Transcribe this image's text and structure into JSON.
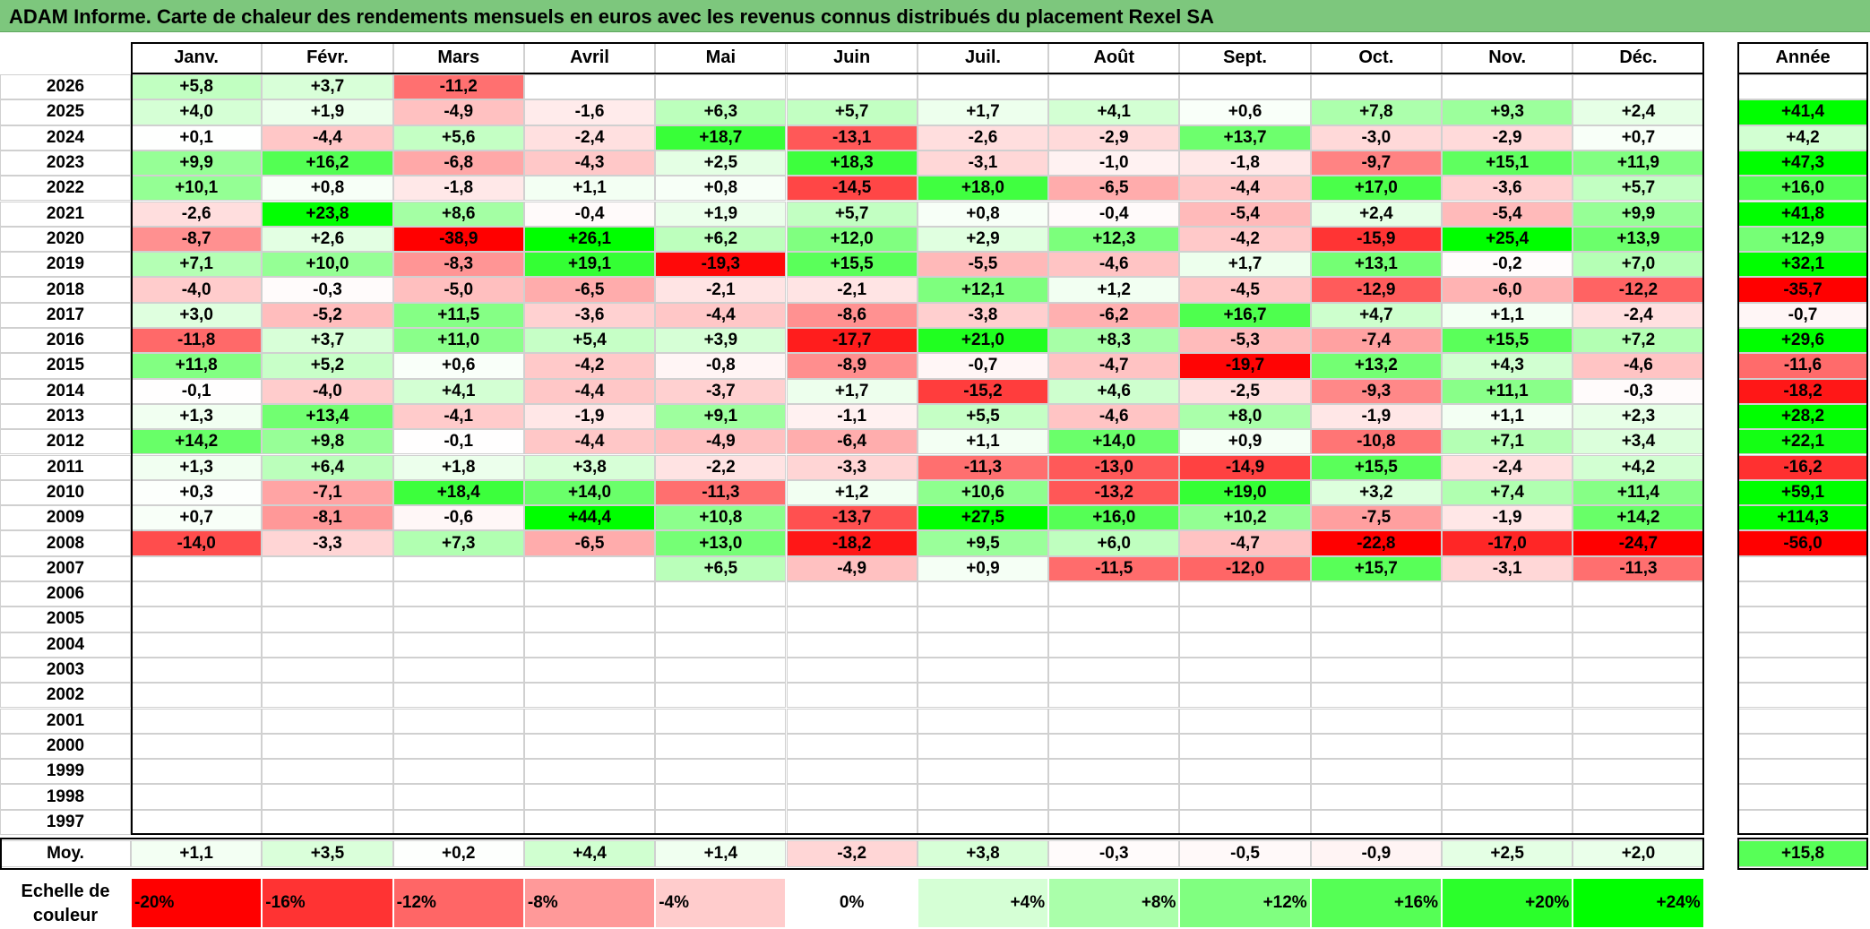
{
  "title": "ADAM Informe. Carte de chaleur des rendements mensuels en euros avec les revenus connus distribués du placement Rexel SA",
  "chart_data": {
    "type": "heatmap",
    "title": "ADAM Informe. Carte de chaleur des rendements mensuels en euros avec les revenus connus distribués du placement Rexel SA",
    "columns": [
      "Janv.",
      "Févr.",
      "Mars",
      "Avril",
      "Mai",
      "Juin",
      "Juil.",
      "Août",
      "Sept.",
      "Oct.",
      "Nov.",
      "Déc."
    ],
    "year_header": "Année",
    "rows": [
      {
        "year": "2026",
        "values": [
          "+5,8",
          "+3,7",
          "-11,2",
          "",
          "",
          "",
          "",
          "",
          "",
          "",
          "",
          ""
        ],
        "annual": ""
      },
      {
        "year": "2025",
        "values": [
          "+4,0",
          "+1,9",
          "-4,9",
          "-1,6",
          "+6,3",
          "+5,7",
          "+1,7",
          "+4,1",
          "+0,6",
          "+7,8",
          "+9,3",
          "+2,4"
        ],
        "annual": "+41,4"
      },
      {
        "year": "2024",
        "values": [
          "+0,1",
          "-4,4",
          "+5,6",
          "-2,4",
          "+18,7",
          "-13,1",
          "-2,6",
          "-2,9",
          "+13,7",
          "-3,0",
          "-2,9",
          "+0,7"
        ],
        "annual": "+4,2"
      },
      {
        "year": "2023",
        "values": [
          "+9,9",
          "+16,2",
          "-6,8",
          "-4,3",
          "+2,5",
          "+18,3",
          "-3,1",
          "-1,0",
          "-1,8",
          "-9,7",
          "+15,1",
          "+11,9"
        ],
        "annual": "+47,3"
      },
      {
        "year": "2022",
        "values": [
          "+10,1",
          "+0,8",
          "-1,8",
          "+1,1",
          "+0,8",
          "-14,5",
          "+18,0",
          "-6,5",
          "-4,4",
          "+17,0",
          "-3,6",
          "+5,7"
        ],
        "annual": "+16,0"
      },
      {
        "year": "2021",
        "values": [
          "-2,6",
          "+23,8",
          "+8,6",
          "-0,4",
          "+1,9",
          "+5,7",
          "+0,8",
          "-0,4",
          "-5,4",
          "+2,4",
          "-5,4",
          "+9,9"
        ],
        "annual": "+41,8"
      },
      {
        "year": "2020",
        "values": [
          "-8,7",
          "+2,6",
          "-38,9",
          "+26,1",
          "+6,2",
          "+12,0",
          "+2,9",
          "+12,3",
          "-4,2",
          "-15,9",
          "+25,4",
          "+13,9"
        ],
        "annual": "+12,9"
      },
      {
        "year": "2019",
        "values": [
          "+7,1",
          "+10,0",
          "-8,3",
          "+19,1",
          "-19,3",
          "+15,5",
          "-5,5",
          "-4,6",
          "+1,7",
          "+13,1",
          "-0,2",
          "+7,0"
        ],
        "annual": "+32,1"
      },
      {
        "year": "2018",
        "values": [
          "-4,0",
          "-0,3",
          "-5,0",
          "-6,5",
          "-2,1",
          "-2,1",
          "+12,1",
          "+1,2",
          "-4,5",
          "-12,9",
          "-6,0",
          "-12,2"
        ],
        "annual": "-35,7"
      },
      {
        "year": "2017",
        "values": [
          "+3,0",
          "-5,2",
          "+11,5",
          "-3,6",
          "-4,4",
          "-8,6",
          "-3,8",
          "-6,2",
          "+16,7",
          "+4,7",
          "+1,1",
          "-2,4"
        ],
        "annual": "-0,7"
      },
      {
        "year": "2016",
        "values": [
          "-11,8",
          "+3,7",
          "+11,0",
          "+5,4",
          "+3,9",
          "-17,7",
          "+21,0",
          "+8,3",
          "-5,3",
          "-7,4",
          "+15,5",
          "+7,2"
        ],
        "annual": "+29,6"
      },
      {
        "year": "2015",
        "values": [
          "+11,8",
          "+5,2",
          "+0,6",
          "-4,2",
          "-0,8",
          "-8,9",
          "-0,7",
          "-4,7",
          "-19,7",
          "+13,2",
          "+4,3",
          "-4,6"
        ],
        "annual": "-11,6"
      },
      {
        "year": "2014",
        "values": [
          "-0,1",
          "-4,0",
          "+4,1",
          "-4,4",
          "-3,7",
          "+1,7",
          "-15,2",
          "+4,6",
          "-2,5",
          "-9,3",
          "+11,1",
          "-0,3"
        ],
        "annual": "-18,2"
      },
      {
        "year": "2013",
        "values": [
          "+1,3",
          "+13,4",
          "-4,1",
          "-1,9",
          "+9,1",
          "-1,1",
          "+5,5",
          "-4,6",
          "+8,0",
          "-1,9",
          "+1,1",
          "+2,3"
        ],
        "annual": "+28,2"
      },
      {
        "year": "2012",
        "values": [
          "+14,2",
          "+9,8",
          "-0,1",
          "-4,4",
          "-4,9",
          "-6,4",
          "+1,1",
          "+14,0",
          "+0,9",
          "-10,8",
          "+7,1",
          "+3,4"
        ],
        "annual": "+22,1"
      },
      {
        "year": "2011",
        "values": [
          "+1,3",
          "+6,4",
          "+1,8",
          "+3,8",
          "-2,2",
          "-3,3",
          "-11,3",
          "-13,0",
          "-14,9",
          "+15,5",
          "-2,4",
          "+4,2"
        ],
        "annual": "-16,2"
      },
      {
        "year": "2010",
        "values": [
          "+0,3",
          "-7,1",
          "+18,4",
          "+14,0",
          "-11,3",
          "+1,2",
          "+10,6",
          "-13,2",
          "+19,0",
          "+3,2",
          "+7,4",
          "+11,4"
        ],
        "annual": "+59,1"
      },
      {
        "year": "2009",
        "values": [
          "+0,7",
          "-8,1",
          "-0,6",
          "+44,4",
          "+10,8",
          "-13,7",
          "+27,5",
          "+16,0",
          "+10,2",
          "-7,5",
          "-1,9",
          "+14,2"
        ],
        "annual": "+114,3"
      },
      {
        "year": "2008",
        "values": [
          "-14,0",
          "-3,3",
          "+7,3",
          "-6,5",
          "+13,0",
          "-18,2",
          "+9,5",
          "+6,0",
          "-4,7",
          "-22,8",
          "-17,0",
          "-24,7"
        ],
        "annual": "-56,0"
      },
      {
        "year": "2007",
        "values": [
          "",
          "",
          "",
          "",
          "+6,5",
          "-4,9",
          "+0,9",
          "-11,5",
          "-12,0",
          "+15,7",
          "-3,1",
          "-11,3"
        ],
        "annual": ""
      },
      {
        "year": "2006",
        "values": [
          "",
          "",
          "",
          "",
          "",
          "",
          "",
          "",
          "",
          "",
          "",
          ""
        ],
        "annual": ""
      },
      {
        "year": "2005",
        "values": [
          "",
          "",
          "",
          "",
          "",
          "",
          "",
          "",
          "",
          "",
          "",
          ""
        ],
        "annual": ""
      },
      {
        "year": "2004",
        "values": [
          "",
          "",
          "",
          "",
          "",
          "",
          "",
          "",
          "",
          "",
          "",
          ""
        ],
        "annual": ""
      },
      {
        "year": "2003",
        "values": [
          "",
          "",
          "",
          "",
          "",
          "",
          "",
          "",
          "",
          "",
          "",
          ""
        ],
        "annual": ""
      },
      {
        "year": "2002",
        "values": [
          "",
          "",
          "",
          "",
          "",
          "",
          "",
          "",
          "",
          "",
          "",
          ""
        ],
        "annual": ""
      },
      {
        "year": "2001",
        "values": [
          "",
          "",
          "",
          "",
          "",
          "",
          "",
          "",
          "",
          "",
          "",
          ""
        ],
        "annual": ""
      },
      {
        "year": "2000",
        "values": [
          "",
          "",
          "",
          "",
          "",
          "",
          "",
          "",
          "",
          "",
          "",
          ""
        ],
        "annual": ""
      },
      {
        "year": "1999",
        "values": [
          "",
          "",
          "",
          "",
          "",
          "",
          "",
          "",
          "",
          "",
          "",
          ""
        ],
        "annual": ""
      },
      {
        "year": "1998",
        "values": [
          "",
          "",
          "",
          "",
          "",
          "",
          "",
          "",
          "",
          "",
          "",
          ""
        ],
        "annual": ""
      },
      {
        "year": "1997",
        "values": [
          "",
          "",
          "",
          "",
          "",
          "",
          "",
          "",
          "",
          "",
          "",
          ""
        ],
        "annual": ""
      }
    ],
    "average": {
      "label": "Moy.",
      "values": [
        "+1,1",
        "+3,5",
        "+0,2",
        "+4,4",
        "+1,4",
        "-3,2",
        "+3,8",
        "-0,3",
        "-0,5",
        "-0,9",
        "+2,5",
        "+2,0"
      ],
      "annual": "+15,8"
    },
    "color_scale": {
      "label": "Echelle de couleur",
      "stops": [
        "-20%",
        "-16%",
        "-12%",
        "-8%",
        "-4%",
        "0%",
        "+4%",
        "+8%",
        "+12%",
        "+16%",
        "+20%",
        "+24%"
      ]
    },
    "colors": {
      "negative": "#ff0000",
      "neutral": "#ffffff",
      "positive": "#00ff00",
      "title_bar": "#7dc77d"
    }
  }
}
